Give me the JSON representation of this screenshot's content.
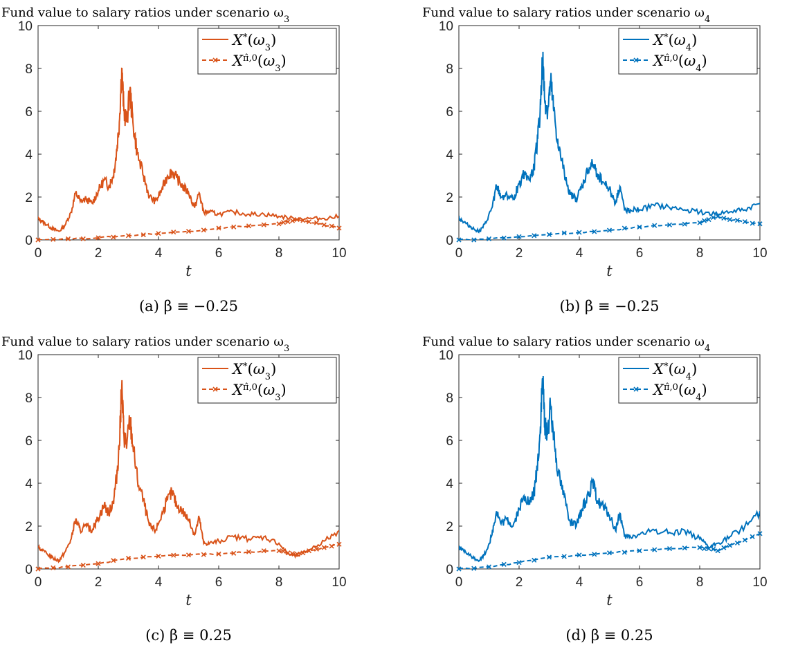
{
  "chart_data": [
    {
      "panel": "a",
      "type": "line",
      "title": "Fund value to salary ratios under scenario ω",
      "title_sub": "3",
      "xlabel": "t",
      "caption": "(a) β ≡ −0.25",
      "xlim": [
        0,
        10
      ],
      "ylim": [
        0,
        10
      ],
      "xticks": [
        "0",
        "2",
        "4",
        "6",
        "8",
        "10"
      ],
      "yticks": [
        "0",
        "2",
        "4",
        "6",
        "8",
        "10"
      ],
      "legend_position": "top-right",
      "color": "#D95319",
      "series": [
        {
          "name": "X·*(ω3)",
          "style": "solid",
          "x": [
            0,
            0.1,
            0.3,
            0.5,
            0.7,
            0.9,
            1.1,
            1.25,
            1.4,
            1.6,
            1.8,
            2.0,
            2.2,
            2.35,
            2.5,
            2.6,
            2.7,
            2.78,
            2.85,
            2.95,
            3.05,
            3.15,
            3.3,
            3.5,
            3.7,
            3.9,
            4.1,
            4.3,
            4.45,
            4.6,
            4.8,
            5.0,
            5.2,
            5.35,
            5.5,
            5.7,
            6.0,
            6.5,
            7.0,
            7.5,
            8.0,
            8.5,
            9.0,
            9.5,
            10
          ],
          "y": [
            1.0,
            0.9,
            0.7,
            0.5,
            0.4,
            0.7,
            1.3,
            2.2,
            1.8,
            1.9,
            1.7,
            2.3,
            2.8,
            2.5,
            3.0,
            4.0,
            5.5,
            8.0,
            6.0,
            5.5,
            7.0,
            5.5,
            4.0,
            3.0,
            2.0,
            1.8,
            2.3,
            3.0,
            3.2,
            2.9,
            2.5,
            2.2,
            1.5,
            2.2,
            1.3,
            1.3,
            1.2,
            1.3,
            1.2,
            1.2,
            1.1,
            1.0,
            1.0,
            1.0,
            1.1
          ]
        },
        {
          "name": "X·^(π̂,0)(ω3)",
          "style": "dashed-x",
          "x": [
            0,
            1,
            2,
            3,
            4,
            5,
            6,
            7,
            8,
            8.3,
            8.6,
            9,
            9.5,
            10
          ],
          "y": [
            0,
            0.05,
            0.1,
            0.2,
            0.3,
            0.4,
            0.55,
            0.65,
            0.75,
            0.85,
            0.95,
            0.85,
            0.7,
            0.55
          ]
        }
      ]
    },
    {
      "panel": "b",
      "type": "line",
      "title": "Fund value to salary ratios under scenario ω",
      "title_sub": "4",
      "xlabel": "t",
      "caption": "(b) β ≡ −0.25",
      "xlim": [
        0,
        10
      ],
      "ylim": [
        0,
        10
      ],
      "xticks": [
        "0",
        "2",
        "4",
        "6",
        "8",
        "10"
      ],
      "yticks": [
        "0",
        "2",
        "4",
        "6",
        "8",
        "10"
      ],
      "legend_position": "top-right",
      "color": "#0072BD",
      "series": [
        {
          "name": "X·*(ω4)",
          "style": "solid",
          "x": [
            0,
            0.1,
            0.3,
            0.5,
            0.7,
            0.9,
            1.1,
            1.25,
            1.4,
            1.6,
            1.8,
            2.0,
            2.2,
            2.35,
            2.5,
            2.6,
            2.7,
            2.78,
            2.85,
            2.95,
            3.05,
            3.15,
            3.3,
            3.5,
            3.7,
            3.9,
            4.1,
            4.3,
            4.45,
            4.6,
            4.8,
            5.0,
            5.2,
            5.35,
            5.5,
            5.7,
            6.0,
            6.5,
            7.0,
            7.5,
            8.0,
            8.5,
            9.0,
            9.5,
            10
          ],
          "y": [
            1.0,
            0.9,
            0.7,
            0.5,
            0.4,
            0.8,
            1.5,
            2.5,
            2.0,
            2.1,
            1.9,
            2.6,
            3.2,
            2.8,
            3.4,
            4.5,
            6.0,
            8.5,
            6.5,
            6.0,
            7.3,
            6.0,
            4.3,
            3.2,
            2.1,
            1.9,
            2.5,
            3.3,
            3.5,
            3.1,
            2.7,
            2.4,
            1.7,
            2.5,
            1.4,
            1.4,
            1.4,
            1.6,
            1.5,
            1.4,
            1.3,
            1.2,
            1.3,
            1.4,
            1.7
          ]
        },
        {
          "name": "X·^(π̂,0)(ω4)",
          "style": "dashed-x",
          "x": [
            0,
            1,
            2,
            3,
            4,
            5,
            6,
            7,
            8,
            8.3,
            8.6,
            9,
            9.5,
            10
          ],
          "y": [
            0,
            0.05,
            0.15,
            0.25,
            0.35,
            0.45,
            0.6,
            0.7,
            0.8,
            0.95,
            1.1,
            0.95,
            0.85,
            0.75
          ]
        }
      ]
    },
    {
      "panel": "c",
      "type": "line",
      "title": "Fund value to salary ratios under scenario ω",
      "title_sub": "3",
      "xlabel": "t",
      "caption": "(c) β ≡ 0.25",
      "xlim": [
        0,
        10
      ],
      "ylim": [
        0,
        10
      ],
      "xticks": [
        "0",
        "2",
        "4",
        "6",
        "8",
        "10"
      ],
      "yticks": [
        "0",
        "2",
        "4",
        "6",
        "8",
        "10"
      ],
      "legend_position": "top-right",
      "color": "#D95319",
      "series": [
        {
          "name": "X·*(ω3)",
          "style": "solid",
          "x": [
            0,
            0.1,
            0.3,
            0.5,
            0.7,
            0.9,
            1.1,
            1.25,
            1.4,
            1.6,
            1.8,
            2.0,
            2.2,
            2.35,
            2.5,
            2.6,
            2.7,
            2.78,
            2.85,
            2.95,
            3.05,
            3.15,
            3.3,
            3.5,
            3.7,
            3.9,
            4.1,
            4.3,
            4.45,
            4.6,
            4.8,
            5.0,
            5.2,
            5.35,
            5.5,
            5.7,
            6.0,
            6.5,
            7.0,
            7.5,
            8.0,
            8.3,
            8.6,
            9.0,
            9.5,
            10
          ],
          "y": [
            1.0,
            0.9,
            0.7,
            0.5,
            0.4,
            0.8,
            1.4,
            2.3,
            1.8,
            2.0,
            1.8,
            2.4,
            3.0,
            2.6,
            3.2,
            4.2,
            5.8,
            8.5,
            6.3,
            5.8,
            7.0,
            5.8,
            4.2,
            3.2,
            2.0,
            1.8,
            2.5,
            3.2,
            3.6,
            3.0,
            2.7,
            2.3,
            1.6,
            2.4,
            1.2,
            1.2,
            1.3,
            1.5,
            1.4,
            1.5,
            1.2,
            0.7,
            0.6,
            0.9,
            1.3,
            1.8
          ]
        },
        {
          "name": "X·^(π̂,0)(ω3)",
          "style": "dashed-x",
          "x": [
            0,
            1,
            2,
            3,
            4,
            5,
            6,
            7,
            8,
            8.3,
            8.6,
            9,
            9.5,
            10
          ],
          "y": [
            0,
            0.1,
            0.25,
            0.5,
            0.6,
            0.65,
            0.7,
            0.8,
            0.85,
            0.75,
            0.7,
            0.85,
            1.0,
            1.15
          ]
        }
      ]
    },
    {
      "panel": "d",
      "type": "line",
      "title": "Fund value to salary ratios under scenario ω",
      "title_sub": "4",
      "xlabel": "t",
      "caption": "(d) β ≡ 0.25",
      "xlim": [
        0,
        10
      ],
      "ylim": [
        0,
        10
      ],
      "xticks": [
        "0",
        "2",
        "4",
        "6",
        "8",
        "10"
      ],
      "yticks": [
        "0",
        "2",
        "4",
        "6",
        "8",
        "10"
      ],
      "legend_position": "top-right",
      "color": "#0072BD",
      "series": [
        {
          "name": "X·*(ω4)",
          "style": "solid",
          "x": [
            0,
            0.1,
            0.3,
            0.5,
            0.7,
            0.9,
            1.1,
            1.25,
            1.4,
            1.6,
            1.8,
            2.0,
            2.2,
            2.35,
            2.5,
            2.6,
            2.7,
            2.78,
            2.85,
            2.95,
            3.05,
            3.15,
            3.3,
            3.5,
            3.7,
            3.9,
            4.1,
            4.3,
            4.45,
            4.6,
            4.8,
            5.0,
            5.2,
            5.35,
            5.5,
            5.7,
            6.0,
            6.5,
            7.0,
            7.5,
            8.0,
            8.3,
            8.6,
            9.0,
            9.5,
            10
          ],
          "y": [
            1.0,
            0.9,
            0.7,
            0.5,
            0.4,
            0.8,
            1.6,
            2.7,
            2.1,
            2.3,
            2.0,
            2.8,
            3.4,
            3.0,
            3.6,
            4.7,
            6.3,
            8.9,
            6.8,
            6.3,
            7.6,
            6.3,
            4.5,
            3.4,
            2.2,
            2.0,
            2.8,
            3.5,
            4.0,
            3.2,
            2.9,
            2.5,
            1.8,
            2.6,
            1.5,
            1.5,
            1.6,
            1.8,
            1.7,
            1.8,
            1.4,
            1.0,
            1.2,
            1.5,
            2.0,
            2.7
          ]
        },
        {
          "name": "X·^(π̂,0)(ω4)",
          "style": "dashed-x",
          "x": [
            0,
            1,
            2,
            3,
            4,
            5,
            6,
            7,
            8,
            8.3,
            8.6,
            9,
            9.5,
            10
          ],
          "y": [
            0,
            0.1,
            0.3,
            0.55,
            0.65,
            0.75,
            0.85,
            0.95,
            1.0,
            0.95,
            0.85,
            1.1,
            1.35,
            1.65
          ]
        }
      ]
    }
  ]
}
